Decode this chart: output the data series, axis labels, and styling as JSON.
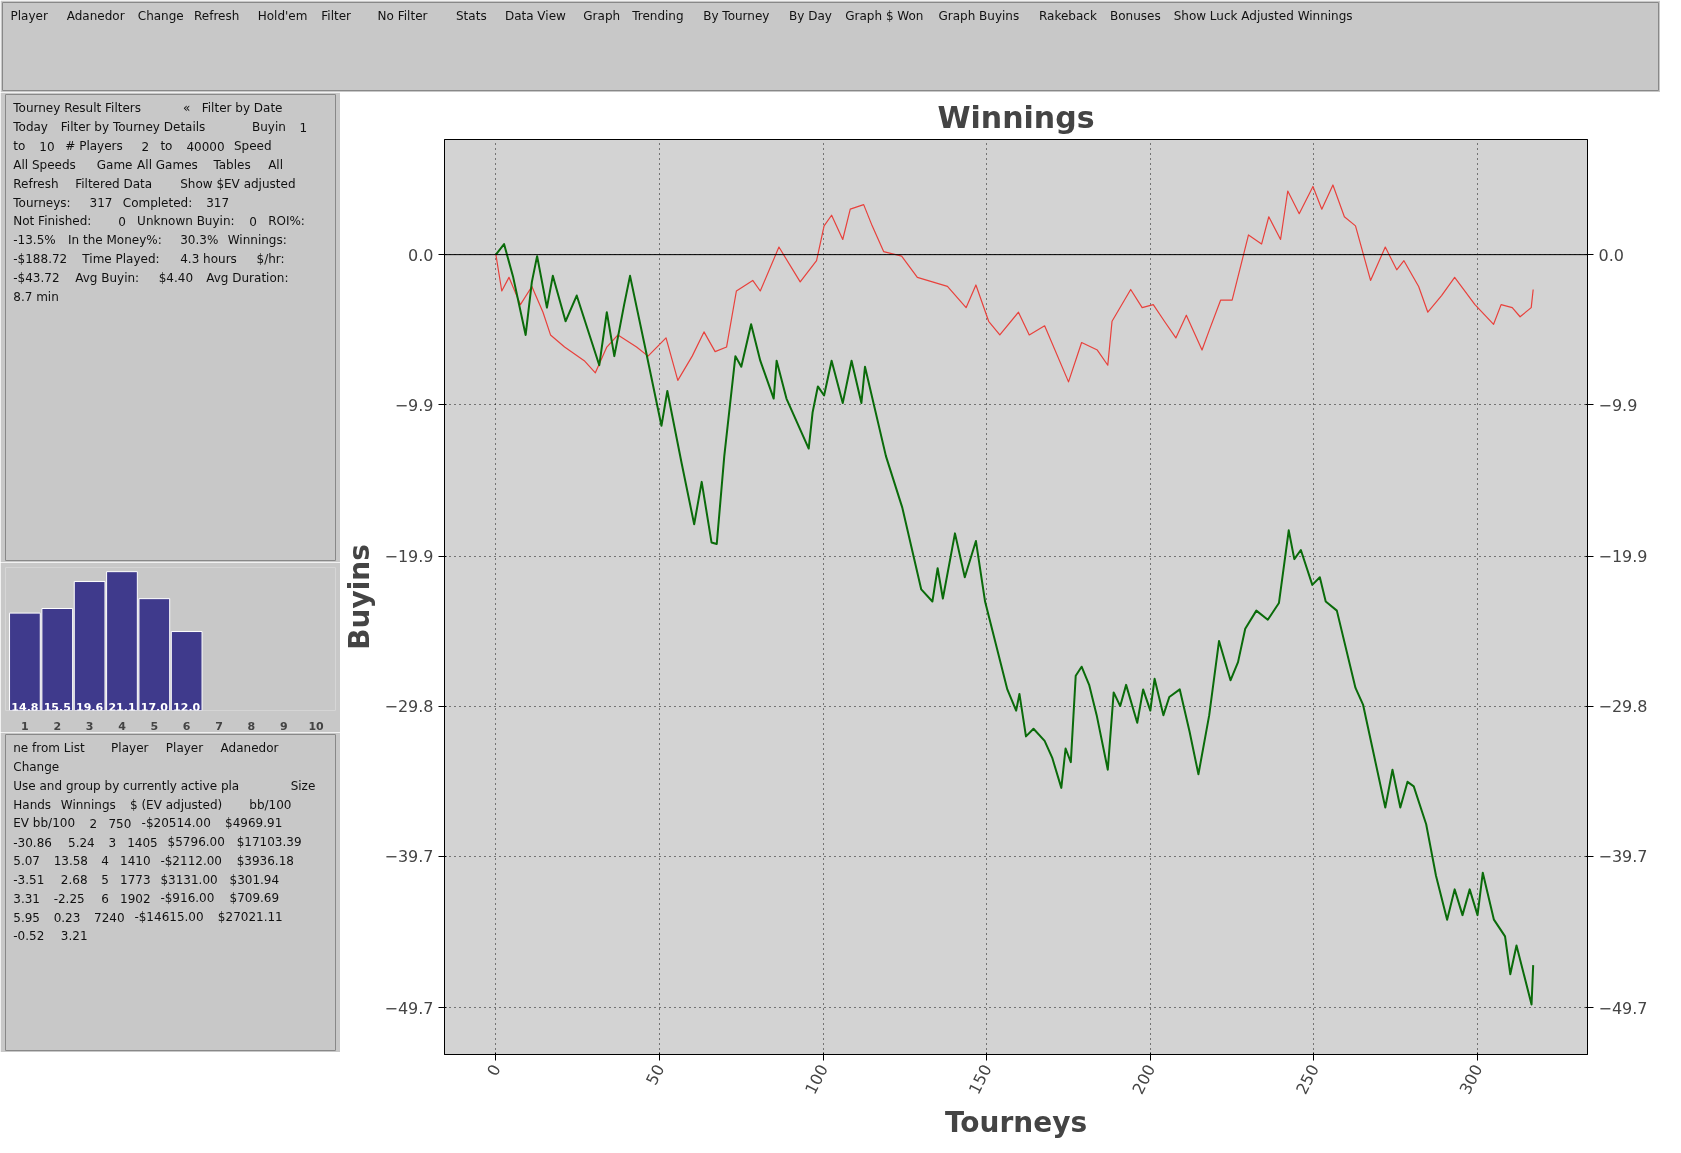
{
  "chart_data": [
    {
      "type": "other",
      "annotations": [
        "Player",
        "Adanedor",
        "Change",
        "Refresh",
        "Hold'em",
        "Filter",
        "No Filter",
        "Stats",
        "Data View",
        "Graph",
        "Trending",
        "By Tourney",
        "By Day",
        "Graph $ Won",
        "Graph Buyins",
        "Rakeback",
        "Bonuses",
        "Show Luck Adjusted Winnings"
      ]
    },
    {
      "type": "other",
      "annotations": [
        "Tourney Result Filters",
        "«",
        "Filter by Date",
        "Today",
        "Filter by Tourney Details",
        "Buyin",
        "1",
        "to",
        "10",
        "# Players",
        "2",
        "to",
        "40000",
        "Speed",
        "All Speeds",
        "Game",
        "All Games",
        "Tables",
        "All",
        "Refresh",
        "Filtered Data",
        "Show $EV adjusted",
        "Tourneys:",
        "317",
        "Completed:",
        "317",
        "Not Finished:",
        "0",
        "Unknown Buyin:",
        "0",
        "ROI%:",
        "-13.5%",
        "In the Money%:",
        "30.3%",
        "Winnings:",
        "-$188.72",
        "Time Played:",
        "4.3 hours",
        "$/hr:",
        "-$43.72",
        "Avg Buyin:",
        "$4.40",
        "Avg Duration:",
        "8.7 min"
      ]
    },
    {
      "type": "bar",
      "categories": [
        "1",
        "2",
        "3",
        "4",
        "5",
        "6",
        "7",
        "8",
        "9",
        "10"
      ],
      "values": [
        14.8,
        15.5,
        19.6,
        21.1,
        17.0,
        12.0,
        null,
        null,
        null,
        null
      ],
      "color": "#3f3a8c",
      "value_labels": [
        "14.8",
        "15.5",
        "19.6",
        "21.1",
        "17.0",
        "12.0",
        null,
        null,
        null,
        null
      ],
      "tick_labels": "x"
    },
    {
      "type": "other",
      "annotations": [
        "ne from List",
        "Player",
        "Player",
        "Adanedor",
        "Change",
        "Use and group by currently active pla",
        "Size",
        "Hands",
        "Winnings",
        "$ (EV adjusted)",
        "bb/100",
        "EV bb/100",
        "2",
        "750",
        "-$20514.00",
        "$4969.91",
        "-30.86",
        "5.24",
        "3",
        "1405",
        "$5796.00",
        "$17103.39",
        "5.07",
        "13.58",
        "4",
        "1410",
        "-$2112.00",
        "$3936.18",
        "-3.51",
        "2.68",
        "5",
        "1773",
        "$3131.00",
        "$301.94",
        "3.31",
        "-2.25",
        "6",
        "1902",
        "-$916.00",
        "$709.69",
        "5.95",
        "0.23",
        "7240",
        "-$14615.00",
        "$27021.11",
        "-0.52",
        "3.21"
      ]
    },
    {
      "type": "line",
      "title": "Winnings",
      "xlabel": "Tourneys",
      "ylabel": "Buyins",
      "xlim": [
        -15.7,
        333.6
      ],
      "ylim": [
        -52.8,
        7.6
      ],
      "y2lim": [
        -52.8,
        7.6
      ],
      "xticks": [
        0,
        50,
        100,
        150,
        200,
        250,
        300
      ],
      "yticks": [
        {
          "value": 0,
          "label": "0.0"
        },
        -9.9,
        -19.9,
        -29.8,
        -39.7,
        -49.7
      ],
      "y2ticks": [
        {
          "value": 0,
          "label": "0.0"
        },
        -9.9,
        -19.9,
        -29.8,
        -39.7,
        -49.7
      ],
      "grid": true,
      "line_style": "solid",
      "ref_lines": [
        {
          "axis": "y",
          "value": 0,
          "color": "#000000"
        }
      ],
      "series": [
        {
          "color": "#e8413c",
          "x": [
            0,
            1.8,
            4,
            7.5,
            11,
            14.4,
            16.7,
            21,
            27,
            30.4,
            33.9,
            37.3,
            43,
            46.5,
            52,
            55.6,
            60,
            63.6,
            67,
            70.5,
            73.5,
            78.5,
            80.8,
            86.5,
            93,
            98,
            100.3,
            102.6,
            106,
            108.3,
            112.4,
            115,
            118.5,
            124,
            128.8,
            138,
            143.7,
            146.7,
            150.6,
            154,
            159.7,
            163,
            167.7,
            175,
            179,
            183.8,
            187,
            188.3,
            194,
            197.5,
            200.9,
            204.3,
            207.8,
            211,
            215.8,
            218,
            221.5,
            225,
            230,
            234,
            236.2,
            239.8,
            242,
            245.5,
            249.7,
            252.4,
            255.8,
            259.3,
            262.7,
            267.3,
            271.8,
            275.3,
            277.5,
            282,
            284.8,
            289,
            293,
            299.2,
            304.9,
            307.2,
            310.6,
            313,
            316.4,
            317
          ],
          "values": [
            0,
            -2.4,
            -1.5,
            -3.3,
            -2.1,
            -3.8,
            -5.3,
            -6.1,
            -7.0,
            -7.8,
            -6.1,
            -5.3,
            -6.1,
            -6.7,
            -5.5,
            -8.3,
            -6.7,
            -5.1,
            -6.4,
            -6.1,
            -2.4,
            -1.7,
            -2.4,
            0.5,
            -1.8,
            -0.4,
            1.9,
            2.6,
            1.0,
            3.0,
            3.3,
            1.9,
            0.2,
            -0.1,
            -1.5,
            -2.1,
            -3.5,
            -2.0,
            -4.4,
            -5.3,
            -3.8,
            -5.3,
            -4.7,
            -8.4,
            -5.8,
            -6.3,
            -7.3,
            -4.4,
            -2.3,
            -3.5,
            -3.3,
            -4.4,
            -5.5,
            -4.0,
            -6.3,
            -5.0,
            -3.0,
            -3.0,
            1.3,
            0.7,
            2.5,
            1.0,
            4.2,
            2.7,
            4.5,
            3.0,
            4.6,
            2.5,
            1.9,
            -1.7,
            0.5,
            -1.0,
            -0.4,
            -2.1,
            -3.8,
            -2.7,
            -1.5,
            -3.3,
            -4.6,
            -3.3,
            -3.5,
            -4.1,
            -3.5,
            -2.3
          ]
        },
        {
          "color": "#0a6b0a",
          "x": [
            0,
            2.5,
            5.3,
            9.1,
            11,
            12.6,
            15.6,
            17.4,
            21.3,
            24.7,
            31.6,
            33.9,
            36.2,
            39.2,
            41,
            45.3,
            50.6,
            52.4,
            56.8,
            60.6,
            62.9,
            65.9,
            67.5,
            69.8,
            73.2,
            75,
            78,
            80.8,
            84.9,
            85.8,
            88.8,
            95.6,
            96.8,
            98.4,
            100.3,
            102.6,
            106,
            108.7,
            111.7,
            112.8,
            119.2,
            124.2,
            130,
            133.4,
            135,
            136.6,
            140.3,
            143.3,
            146.7,
            149.5,
            156.3,
            159,
            160,
            162,
            164.3,
            167.7,
            170,
            172.8,
            174.1,
            175.7,
            177.2,
            179,
            181.3,
            183.6,
            187,
            188.8,
            190.8,
            192.6,
            196,
            197.8,
            200,
            201.3,
            204,
            205.8,
            209,
            212,
            214.7,
            218,
            221,
            224.5,
            226.8,
            229,
            232.4,
            235.9,
            239.3,
            242.3,
            244,
            246,
            249.5,
            251.8,
            253.6,
            257,
            262.7,
            265,
            268.4,
            271.8,
            274,
            276.4,
            278.6,
            280.5,
            284.3,
            287.3,
            290.7,
            293,
            295.4,
            297.6,
            300,
            301.6,
            305,
            308.4,
            310,
            311.9,
            316.5,
            317
          ],
          "values": [
            0,
            0.7,
            -1.5,
            -5.3,
            -1.8,
            -0.1,
            -3.5,
            -1.4,
            -4.4,
            -2.7,
            -7.3,
            -3.8,
            -6.7,
            -3.3,
            -1.4,
            -5.8,
            -11.3,
            -9.0,
            -13.8,
            -17.8,
            -15.0,
            -19.0,
            -19.1,
            -13.3,
            -6.7,
            -7.4,
            -4.6,
            -7.0,
            -9.5,
            -7.0,
            -9.5,
            -12.8,
            -10.4,
            -8.7,
            -9.3,
            -7.0,
            -9.8,
            -7.0,
            -9.8,
            -7.4,
            -13.3,
            -16.7,
            -22.1,
            -22.9,
            -20.7,
            -22.7,
            -18.4,
            -21.3,
            -18.9,
            -22.9,
            -28.7,
            -30.1,
            -29.0,
            -31.8,
            -31.3,
            -32.1,
            -33.2,
            -35.2,
            -32.6,
            -33.5,
            -27.8,
            -27.2,
            -28.4,
            -30.4,
            -34.0,
            -28.9,
            -29.8,
            -28.4,
            -30.9,
            -28.7,
            -30.1,
            -28.0,
            -30.4,
            -29.2,
            -28.7,
            -31.5,
            -34.3,
            -30.4,
            -25.5,
            -28.1,
            -26.9,
            -24.7,
            -23.5,
            -24.1,
            -23.0,
            -18.2,
            -20.1,
            -19.5,
            -21.8,
            -21.3,
            -22.9,
            -23.5,
            -28.6,
            -29.7,
            -33.1,
            -36.5,
            -34.0,
            -36.5,
            -34.8,
            -35.1,
            -37.6,
            -41.0,
            -43.9,
            -41.9,
            -43.6,
            -41.9,
            -43.6,
            -40.8,
            -43.9,
            -45.0,
            -47.5,
            -45.6,
            -49.5,
            -46.9
          ]
        }
      ]
    }
  ]
}
